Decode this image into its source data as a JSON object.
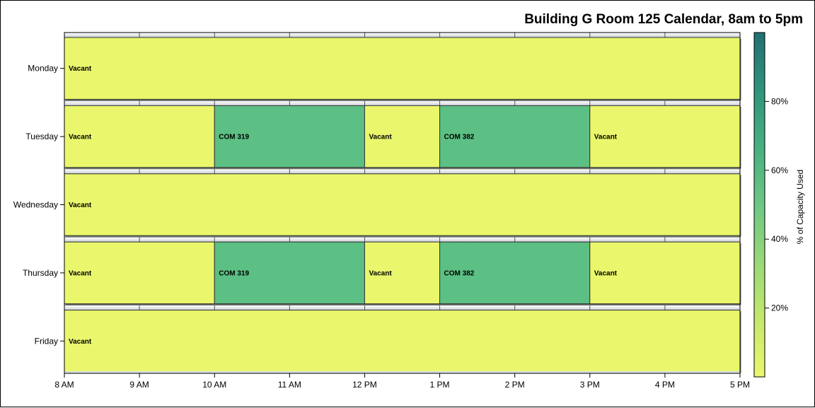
{
  "chart_data": {
    "type": "bar",
    "orientation": "horizontal-timeline",
    "title": "Building G Room 125 Calendar, 8am to 5pm",
    "x_ticks": [
      "8 AM",
      "9 AM",
      "10 AM",
      "11 AM",
      "12 PM",
      "1 PM",
      "2 PM",
      "3 PM",
      "4 PM",
      "5 PM"
    ],
    "xlim": [
      8,
      17
    ],
    "days": [
      {
        "name": "Monday",
        "events": [
          {
            "label": "Vacant",
            "start": 8,
            "end": 17,
            "capacity_pct": 0
          }
        ]
      },
      {
        "name": "Tuesday",
        "events": [
          {
            "label": "Vacant",
            "start": 8,
            "end": 10,
            "capacity_pct": 0
          },
          {
            "label": "COM 319",
            "start": 10,
            "end": 12,
            "capacity_pct": 50
          },
          {
            "label": "Vacant",
            "start": 12,
            "end": 13,
            "capacity_pct": 0
          },
          {
            "label": "COM 382",
            "start": 13,
            "end": 15,
            "capacity_pct": 50
          },
          {
            "label": "Vacant",
            "start": 15,
            "end": 17,
            "capacity_pct": 0
          }
        ]
      },
      {
        "name": "Wednesday",
        "events": [
          {
            "label": "Vacant",
            "start": 8,
            "end": 17,
            "capacity_pct": 0
          }
        ]
      },
      {
        "name": "Thursday",
        "events": [
          {
            "label": "Vacant",
            "start": 8,
            "end": 10,
            "capacity_pct": 0
          },
          {
            "label": "COM 319",
            "start": 10,
            "end": 12,
            "capacity_pct": 50
          },
          {
            "label": "Vacant",
            "start": 12,
            "end": 13,
            "capacity_pct": 0
          },
          {
            "label": "COM 382",
            "start": 13,
            "end": 15,
            "capacity_pct": 50
          },
          {
            "label": "Vacant",
            "start": 15,
            "end": 17,
            "capacity_pct": 0
          }
        ]
      },
      {
        "name": "Friday",
        "events": [
          {
            "label": "Vacant",
            "start": 8,
            "end": 17,
            "capacity_pct": 0
          }
        ]
      }
    ],
    "colorbar": {
      "title": "% of Capacity Used",
      "range": [
        0,
        100
      ],
      "ticks": [
        {
          "value": 20,
          "label": "20%"
        },
        {
          "value": 40,
          "label": "40%"
        },
        {
          "value": 60,
          "label": "60%"
        },
        {
          "value": 80,
          "label": "80%"
        }
      ],
      "colors": [
        "#eaf76c",
        "#c5e86c",
        "#98d977",
        "#6dc784",
        "#47b080",
        "#2f947c",
        "#226f72"
      ],
      "low_color": "#eaf76c",
      "mid_color": "#5cbf83",
      "high_color": "#226f72"
    },
    "grid": false,
    "legend": "right"
  }
}
